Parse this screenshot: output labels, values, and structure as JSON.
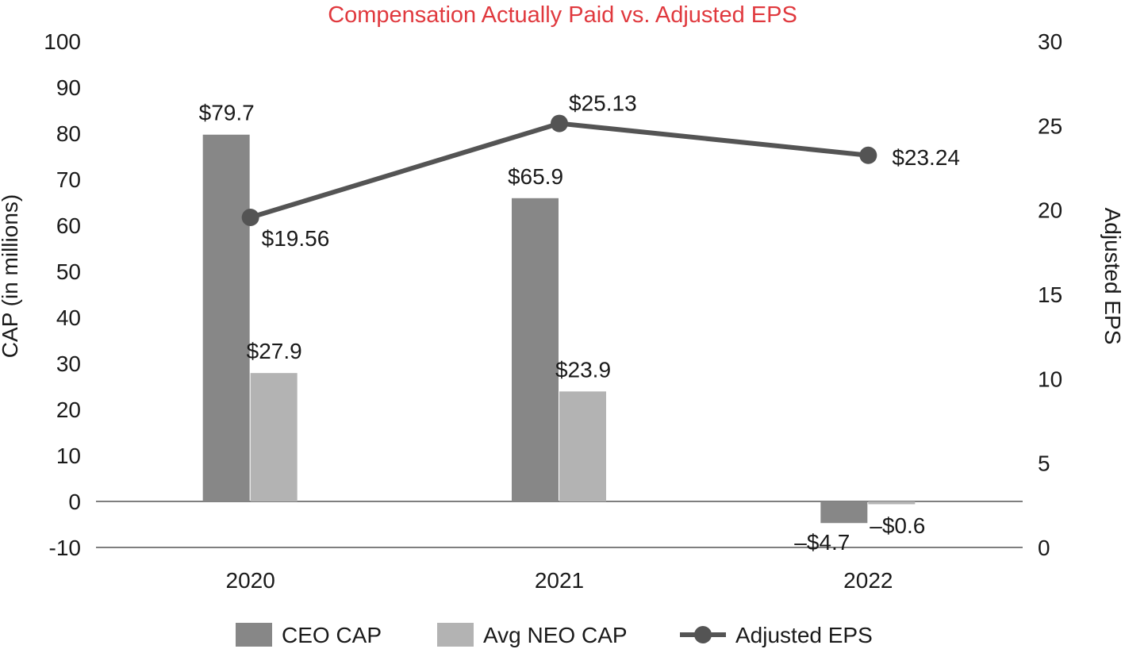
{
  "chart_data": {
    "type": "bar",
    "title": "Compensation Actually Paid vs. Adjusted EPS",
    "categories": [
      "2020",
      "2021",
      "2022"
    ],
    "ylabel": "CAP (in millions)",
    "ylim": [
      -10,
      100
    ],
    "y_ticks": [
      "-10",
      "0",
      "10",
      "20",
      "30",
      "40",
      "50",
      "60",
      "70",
      "80",
      "90",
      "100"
    ],
    "y2label": "Adjusted EPS",
    "y2lim": [
      0,
      30
    ],
    "y2_ticks": [
      "0",
      "5",
      "10",
      "15",
      "20",
      "25",
      "30"
    ],
    "grid": false,
    "legend_position": "bottom",
    "series": [
      {
        "name": "CEO CAP",
        "kind": "bar",
        "axis": "left",
        "color": "#878787",
        "values": [
          79.7,
          65.9,
          -4.7
        ],
        "labels": [
          "$79.7",
          "$65.9",
          "–$4.7"
        ]
      },
      {
        "name": "Avg NEO CAP",
        "kind": "bar",
        "axis": "left",
        "color": "#b3b3b3",
        "values": [
          27.9,
          23.9,
          -0.6
        ],
        "labels": [
          "$27.9",
          "$23.9",
          "–$0.6"
        ]
      },
      {
        "name": "Adjusted EPS",
        "kind": "line",
        "axis": "right",
        "color": "#545454",
        "values": [
          19.56,
          25.13,
          23.24
        ],
        "labels": [
          "$19.56",
          "$25.13",
          "$23.24"
        ]
      }
    ]
  }
}
